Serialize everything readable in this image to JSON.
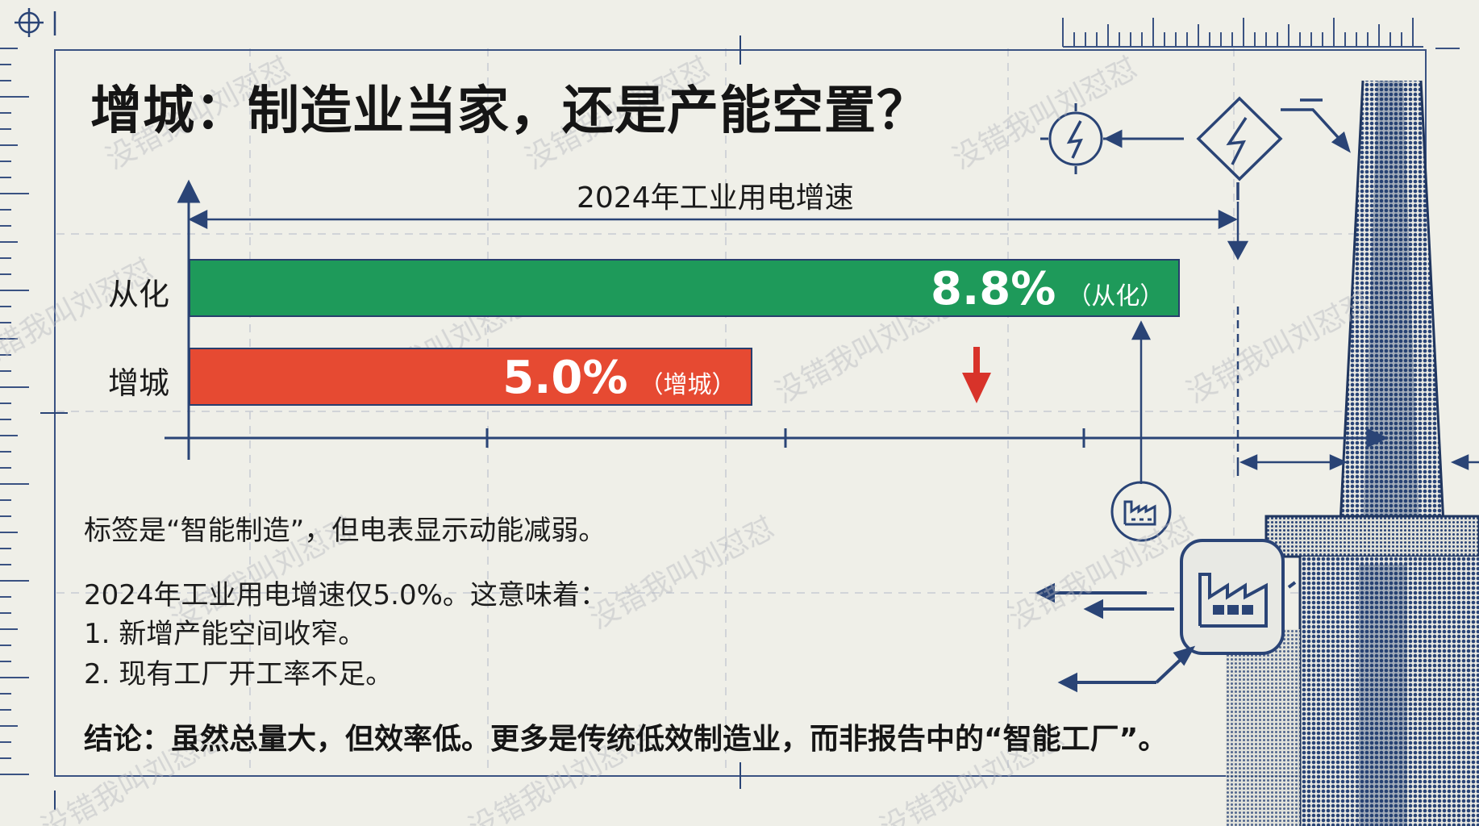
{
  "page": {
    "title": "增城：制造业当家，还是产能空置？"
  },
  "chart_data": {
    "type": "bar",
    "orientation": "horizontal",
    "title": "2024年工业用电增速",
    "categories": [
      "从化",
      "增城"
    ],
    "values": [
      8.8,
      5.0
    ],
    "value_labels": [
      "8.8%",
      "5.0%"
    ],
    "bar_tags": [
      "（从化）",
      "（增城）"
    ],
    "unit": "%",
    "xlim": [
      0,
      10
    ],
    "colors": [
      "#1e9a5a",
      "#e64a32"
    ],
    "grid": true,
    "legend": "none",
    "decline_marker": "red-down-arrow"
  },
  "body": {
    "line1": "标签是“智能制造”，但电表显示动能减弱。",
    "line2": "2024年工业用电增速仅5.0%。这意味着：",
    "line3": "1. 新增产能空间收窄。",
    "line4": "2. 现有工厂开工率不足。",
    "conclusion": "结论：虽然总量大，但效率低。更多是传统低效制造业，而非报告中的“智能工厂”。"
  },
  "watermark": "没错我叫刘怼怼",
  "icons": [
    "crosshair-icon",
    "lightning-circle-icon",
    "lightning-diamond-icon",
    "factory-circle-icon",
    "factory-rounded-icon",
    "smokestack-illustration"
  ],
  "colors": {
    "background": "#efefe8",
    "ink": "#283e6d",
    "green_bar": "#1e9a5a",
    "red_bar": "#e64a32",
    "arrow_red": "#d8332a"
  }
}
